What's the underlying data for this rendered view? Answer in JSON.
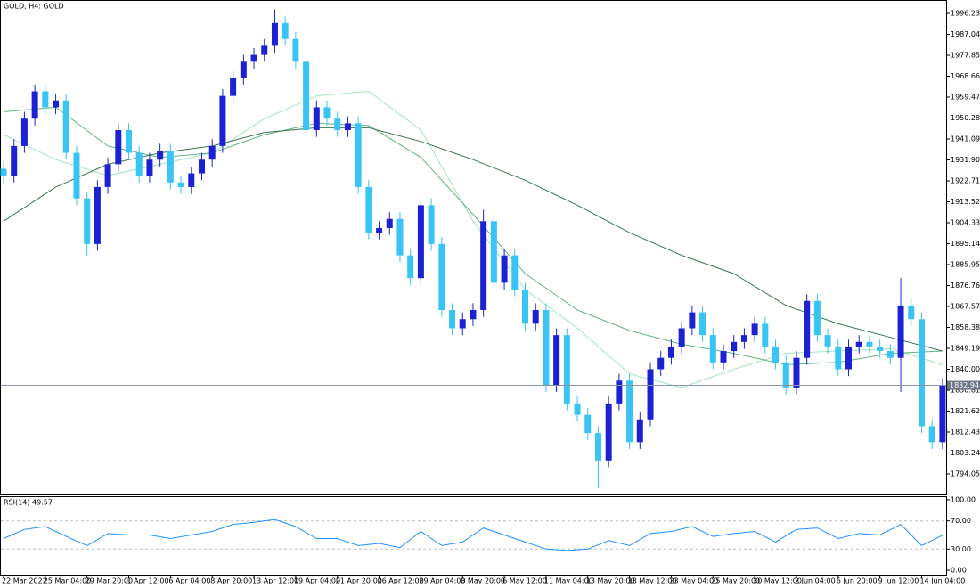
{
  "chart_data": [
    {
      "type": "candlestick",
      "title": "GOLD, H4:  GOLD",
      "categories": [
        "22 Mar 2022",
        null,
        null,
        null,
        "25 Mar 04:00",
        null,
        null,
        null,
        "29 Mar 20:00",
        null,
        null,
        null,
        "1 Apr 12:00",
        null,
        null,
        null,
        "6 Apr 04:00",
        null,
        null,
        null,
        "8 Apr 20:00",
        null,
        null,
        null,
        "13 Apr 12:00",
        null,
        null,
        null,
        "19 Apr 04:00",
        null,
        null,
        null,
        "21 Apr 20:00",
        null,
        null,
        null,
        "26 Apr 12:00",
        null,
        null,
        null,
        "29 Apr 04:00",
        null,
        null,
        null,
        "3 May 20:00",
        null,
        null,
        null,
        "6 May 12:00",
        null,
        null,
        null,
        "11 May 04:00",
        null,
        null,
        null,
        "13 May 20:00",
        null,
        null,
        null,
        "18 May 12:00",
        null,
        null,
        null,
        "23 May 04:00",
        null,
        null,
        null,
        "25 May 20:00",
        null,
        null,
        null,
        "30 May 12:00",
        null,
        null,
        null,
        "2 Jun 04:00",
        null,
        null,
        null,
        "6 Jun 20:00",
        null,
        null,
        null,
        "9 Jun 12:00",
        null,
        null,
        null,
        "14 Jun 04:00",
        null,
        null
      ],
      "open": [
        1928,
        1925,
        1938,
        1950,
        1962,
        1955,
        1958,
        1935,
        1915,
        1895,
        1920,
        1930,
        1945,
        1935,
        1925,
        1932,
        1936,
        1922,
        1920,
        1926,
        1932,
        1938,
        1960,
        1968,
        1975,
        1978,
        1982,
        1992,
        1985,
        1975,
        1945,
        1955,
        1950,
        1945,
        1948,
        1920,
        1900,
        1902,
        1906,
        1890,
        1880,
        1912,
        1895,
        1866,
        1858,
        1862,
        1866,
        1905,
        1878,
        1890,
        1875,
        1860,
        1866,
        1833,
        1855,
        1825,
        1820,
        1812,
        1800,
        1825,
        1835,
        1808,
        1818,
        1840,
        1845,
        1850,
        1858,
        1865,
        1855,
        1843,
        1848,
        1852,
        1855,
        1860,
        1850,
        1843,
        1832,
        1845,
        1870,
        1855,
        1850,
        1840,
        1850,
        1852,
        1850,
        1848,
        1845,
        1868,
        1862,
        1815,
        1808
      ],
      "high": [
        1931,
        1941,
        1953,
        1965,
        1965,
        1961,
        1961,
        1938,
        1918,
        1923,
        1933,
        1948,
        1948,
        1938,
        1935,
        1939,
        1939,
        1925,
        1929,
        1935,
        1941,
        1963,
        1971,
        1978,
        1981,
        1985,
        1998,
        1995,
        1988,
        1978,
        1958,
        1958,
        1953,
        1951,
        1951,
        1923,
        1905,
        1909,
        1909,
        1893,
        1915,
        1915,
        1898,
        1869,
        1865,
        1869,
        1910,
        1908,
        1893,
        1893,
        1878,
        1869,
        1869,
        1858,
        1858,
        1828,
        1823,
        1815,
        1828,
        1838,
        1838,
        1821,
        1843,
        1848,
        1853,
        1861,
        1868,
        1868,
        1858,
        1851,
        1855,
        1858,
        1863,
        1863,
        1853,
        1846,
        1848,
        1873,
        1873,
        1858,
        1853,
        1853,
        1855,
        1855,
        1853,
        1851,
        1880,
        1871,
        1865,
        1818,
        1836
      ],
      "low": [
        1922,
        1922,
        1935,
        1947,
        1952,
        1952,
        1932,
        1912,
        1890,
        1892,
        1917,
        1927,
        1932,
        1922,
        1922,
        1929,
        1919,
        1917,
        1917,
        1923,
        1929,
        1935,
        1957,
        1965,
        1972,
        1975,
        1979,
        1982,
        1972,
        1942,
        1942,
        1947,
        1942,
        1942,
        1917,
        1897,
        1897,
        1899,
        1887,
        1877,
        1877,
        1892,
        1863,
        1855,
        1855,
        1859,
        1863,
        1875,
        1875,
        1872,
        1857,
        1857,
        1830,
        1830,
        1822,
        1817,
        1809,
        1788,
        1797,
        1822,
        1805,
        1805,
        1815,
        1837,
        1842,
        1847,
        1855,
        1852,
        1840,
        1840,
        1845,
        1849,
        1852,
        1847,
        1840,
        1829,
        1829,
        1842,
        1852,
        1847,
        1837,
        1837,
        1847,
        1847,
        1845,
        1842,
        1830,
        1859,
        1812,
        1805,
        1805
      ],
      "close": [
        1925,
        1938,
        1950,
        1962,
        1955,
        1958,
        1935,
        1915,
        1895,
        1920,
        1930,
        1945,
        1935,
        1925,
        1932,
        1936,
        1922,
        1920,
        1926,
        1932,
        1938,
        1960,
        1968,
        1975,
        1978,
        1982,
        1992,
        1985,
        1975,
        1945,
        1955,
        1950,
        1945,
        1948,
        1920,
        1900,
        1902,
        1906,
        1890,
        1880,
        1912,
        1895,
        1866,
        1858,
        1862,
        1866,
        1905,
        1878,
        1890,
        1875,
        1860,
        1866,
        1833,
        1855,
        1825,
        1820,
        1812,
        1800,
        1825,
        1835,
        1808,
        1818,
        1840,
        1845,
        1850,
        1858,
        1865,
        1855,
        1843,
        1848,
        1852,
        1855,
        1860,
        1850,
        1843,
        1832,
        1845,
        1870,
        1855,
        1850,
        1840,
        1850,
        1852,
        1850,
        1848,
        1845,
        1868,
        1862,
        1815,
        1808,
        1832.94
      ],
      "up_color": "#1c22d4",
      "down_color": "#38c4f4",
      "ylim": [
        1785.06,
        2001.31
      ],
      "yticks": [
        1996.23,
        1987.04,
        1977.85,
        1968.66,
        1959.47,
        1950.28,
        1941.09,
        {
          "value": 1931.9,
          "label": "1931.90"
        },
        1922.71,
        1913.52,
        1904.33,
        1895.14,
        1885.95,
        1876.76,
        1867.57,
        1858.38,
        1849.19,
        {
          "value": 1840,
          "label": "1840.00"
        },
        1830.81,
        1821.62,
        1812.43,
        1803.24,
        1794.05
      ],
      "series": [
        {
          "color": "#a6e3bd",
          "x": [
            0,
            5,
            10,
            15,
            20,
            25,
            30,
            35,
            40,
            45,
            50,
            55,
            60,
            65,
            70,
            75,
            80,
            85,
            90
          ],
          "values": [
            1943,
            1932,
            1925,
            1930,
            1935,
            1950,
            1960,
            1962,
            1945,
            1905,
            1875,
            1858,
            1838,
            1832,
            1840,
            1847,
            1848,
            1849,
            1842
          ]
        },
        {
          "color": "#62b57f",
          "x": [
            0,
            5,
            10,
            15,
            20,
            25,
            30,
            35,
            40,
            45,
            50,
            55,
            60,
            65,
            70,
            75,
            80,
            85,
            90
          ],
          "values": [
            1953,
            1955,
            1938,
            1933,
            1935,
            1943,
            1948,
            1947,
            1933,
            1908,
            1882,
            1866,
            1857,
            1851,
            1847,
            1842,
            1843,
            1847,
            1848
          ]
        },
        {
          "color": "#3b7550",
          "x": [
            0,
            5,
            10,
            15,
            20,
            25,
            30,
            35,
            40,
            45,
            50,
            55,
            60,
            65,
            70,
            75,
            80,
            85,
            90
          ],
          "values": [
            1905,
            1920,
            1930,
            1935,
            1938,
            1944,
            1946,
            1946,
            1940,
            1932,
            1923,
            1912,
            1900,
            1890,
            1882,
            1868,
            1860,
            1854,
            1848
          ]
        }
      ]
    },
    {
      "type": "line",
      "title": "RSI(14)",
      "color": "#1e90ff",
      "x": [
        0,
        2,
        4,
        6,
        8,
        10,
        12,
        14,
        16,
        18,
        20,
        22,
        24,
        26,
        28,
        30,
        32,
        34,
        36,
        38,
        40,
        42,
        44,
        46,
        48,
        50,
        52,
        54,
        56,
        58,
        60,
        62,
        64,
        66,
        68,
        70,
        72,
        74,
        76,
        78,
        80,
        82,
        84,
        86,
        88,
        90
      ],
      "values": [
        45,
        58,
        62,
        48,
        35,
        52,
        50,
        50,
        45,
        50,
        55,
        65,
        68,
        72,
        62,
        45,
        45,
        35,
        38,
        32,
        55,
        35,
        40,
        60,
        50,
        40,
        30,
        28,
        30,
        42,
        35,
        52,
        55,
        62,
        48,
        52,
        55,
        40,
        58,
        60,
        45,
        52,
        50,
        65,
        35,
        49.57
      ],
      "ylim": [
        0,
        100
      ],
      "yticks": [
        {
          "value": 100,
          "label": "100.00"
        },
        {
          "value": 70,
          "label": "70.00"
        },
        {
          "value": 30,
          "label": "30.00"
        },
        {
          "value": 0,
          "label": "0.00"
        }
      ],
      "levels": [
        70,
        30
      ]
    }
  ]
}
